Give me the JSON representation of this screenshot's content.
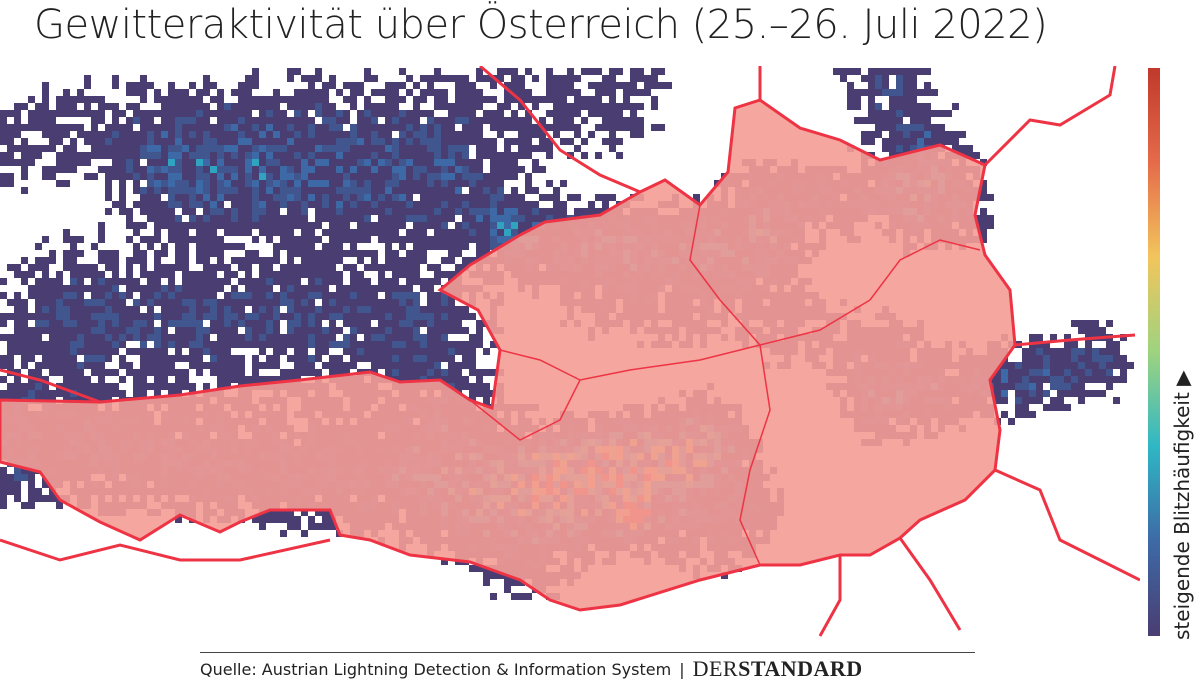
{
  "title": "Gewitteraktivität über Österreich (25.–26. Juli 2022)",
  "colorbar_label": "steigende Blitzhäufigkeit ▶",
  "source": "Quelle: Austrian Lightning Detection & Information System",
  "logo": {
    "prefix": "DER",
    "name": "STANDARD"
  }
}
